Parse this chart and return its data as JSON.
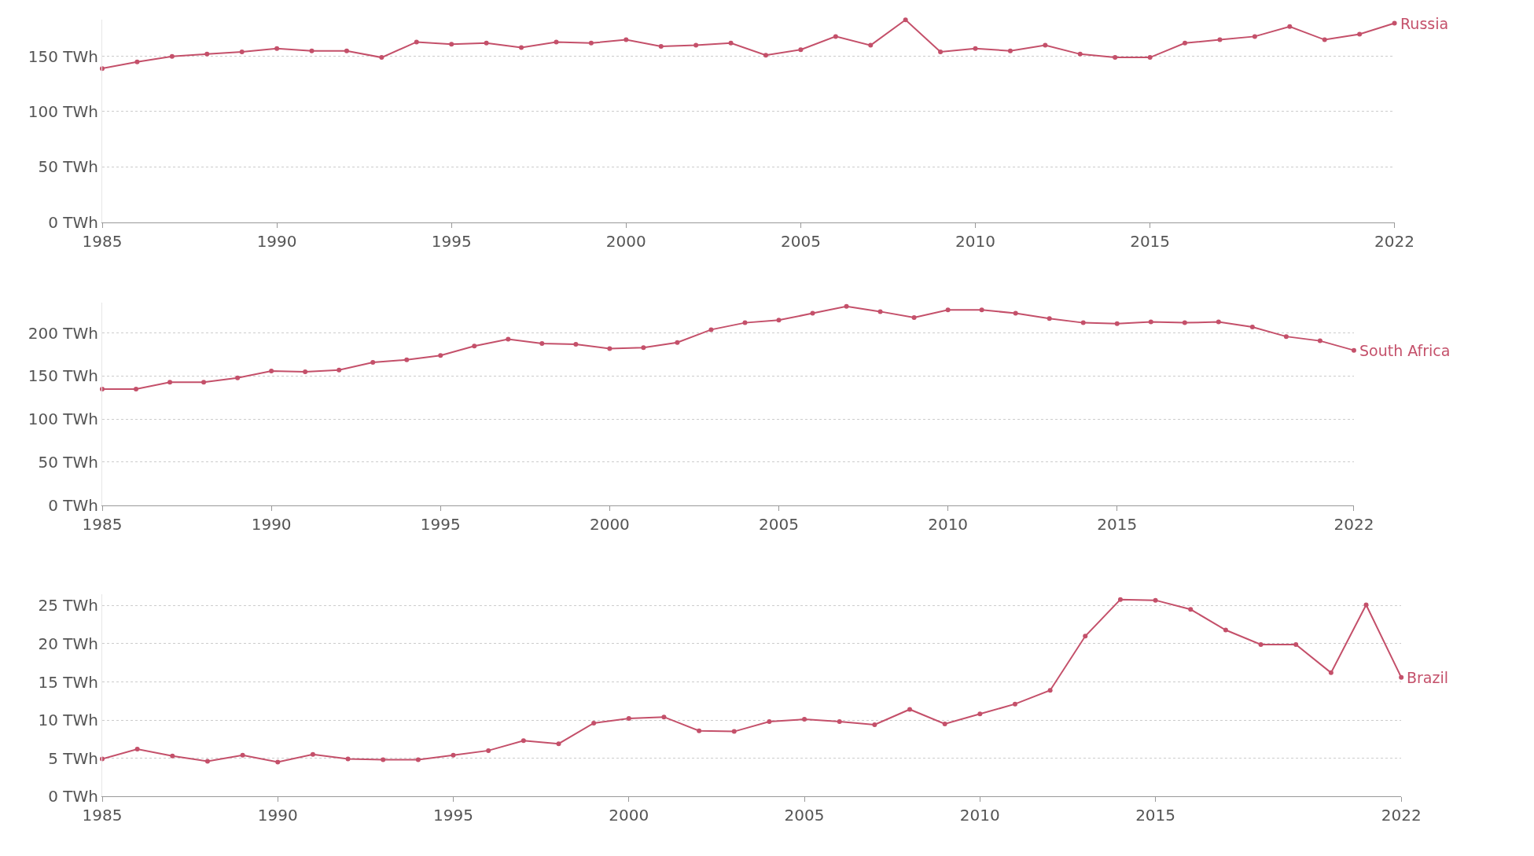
{
  "chart_data": [
    {
      "type": "line",
      "x": [
        1985,
        1986,
        1987,
        1988,
        1989,
        1990,
        1991,
        1992,
        1993,
        1994,
        1995,
        1996,
        1997,
        1998,
        1999,
        2000,
        2001,
        2002,
        2003,
        2004,
        2005,
        2006,
        2007,
        2008,
        2009,
        2010,
        2011,
        2012,
        2013,
        2014,
        2015,
        2016,
        2017,
        2018,
        2019,
        2020,
        2021,
        2022
      ],
      "series": [
        {
          "name": "Russia",
          "color": "#c4506a",
          "values": [
            139,
            145,
            150,
            152,
            154,
            157,
            155,
            155,
            149,
            163,
            161,
            162,
            158,
            163,
            162,
            165,
            159,
            160,
            162,
            151,
            156,
            168,
            160,
            183,
            154,
            157,
            155,
            160,
            152,
            149,
            149,
            162,
            165,
            168,
            177,
            165,
            170,
            180
          ]
        }
      ],
      "xlim": [
        1985,
        2022
      ],
      "xticks": [
        1985,
        1990,
        1995,
        2000,
        2005,
        2010,
        2015,
        2022
      ],
      "ylim": [
        0,
        183
      ],
      "yticks": [
        {
          "value": 0,
          "label": "0 TWh"
        },
        {
          "value": 50,
          "label": "50 TWh"
        },
        {
          "value": 100,
          "label": "100 TWh"
        },
        {
          "value": 150,
          "label": "150 TWh"
        }
      ],
      "grid": "y",
      "marker": "circle",
      "line_style": "solid"
    },
    {
      "type": "line",
      "x": [
        1985,
        1986,
        1987,
        1988,
        1989,
        1990,
        1991,
        1992,
        1993,
        1994,
        1995,
        1996,
        1997,
        1998,
        1999,
        2000,
        2001,
        2002,
        2003,
        2004,
        2005,
        2006,
        2007,
        2008,
        2009,
        2010,
        2011,
        2012,
        2013,
        2014,
        2015,
        2016,
        2017,
        2018,
        2019,
        2020,
        2021,
        2022
      ],
      "series": [
        {
          "name": "South Africa",
          "color": "#c4506a",
          "values": [
            135,
            135,
            143,
            143,
            148,
            156,
            155,
            157,
            166,
            169,
            174,
            185,
            193,
            188,
            187,
            182,
            183,
            189,
            204,
            212,
            215,
            223,
            231,
            225,
            218,
            227,
            227,
            223,
            217,
            212,
            211,
            213,
            212,
            213,
            207,
            196,
            191,
            180
          ]
        }
      ],
      "xlim": [
        1985,
        2022
      ],
      "xticks": [
        1985,
        1990,
        1995,
        2000,
        2005,
        2010,
        2015,
        2022
      ],
      "ylim": [
        0,
        235
      ],
      "yticks": [
        {
          "value": 0,
          "label": "0 TWh"
        },
        {
          "value": 50,
          "label": "50 TWh"
        },
        {
          "value": 100,
          "label": "100 TWh"
        },
        {
          "value": 150,
          "label": "150 TWh"
        },
        {
          "value": 200,
          "label": "200 TWh"
        }
      ],
      "grid": "y",
      "marker": "circle",
      "line_style": "solid"
    },
    {
      "type": "line",
      "x": [
        1985,
        1986,
        1987,
        1988,
        1989,
        1990,
        1991,
        1992,
        1993,
        1994,
        1995,
        1996,
        1997,
        1998,
        1999,
        2000,
        2001,
        2002,
        2003,
        2004,
        2005,
        2006,
        2007,
        2008,
        2009,
        2010,
        2011,
        2012,
        2013,
        2014,
        2015,
        2016,
        2017,
        2018,
        2019,
        2020,
        2021,
        2022
      ],
      "series": [
        {
          "name": "Brazil",
          "color": "#c4506a",
          "values": [
            4.9,
            6.2,
            5.3,
            4.6,
            5.4,
            4.5,
            5.5,
            4.9,
            4.8,
            4.8,
            5.4,
            6.0,
            7.3,
            6.9,
            9.6,
            10.2,
            10.4,
            8.6,
            8.5,
            9.8,
            10.1,
            9.8,
            9.4,
            11.4,
            9.5,
            10.8,
            12.1,
            13.9,
            21.0,
            25.8,
            25.7,
            24.5,
            21.8,
            19.9,
            19.9,
            16.2,
            25.1,
            15.6
          ]
        }
      ],
      "xlim": [
        1985,
        2022
      ],
      "xticks": [
        1985,
        1990,
        1995,
        2000,
        2005,
        2010,
        2015,
        2022
      ],
      "ylim": [
        0,
        26.5
      ],
      "yticks": [
        {
          "value": 0,
          "label": "0 TWh"
        },
        {
          "value": 5,
          "label": "5 TWh"
        },
        {
          "value": 10,
          "label": "10 TWh"
        },
        {
          "value": 15,
          "label": "15 TWh"
        },
        {
          "value": 20,
          "label": "20 TWh"
        },
        {
          "value": 25,
          "label": "25 TWh"
        }
      ],
      "grid": "y",
      "marker": "circle",
      "line_style": "solid"
    }
  ]
}
